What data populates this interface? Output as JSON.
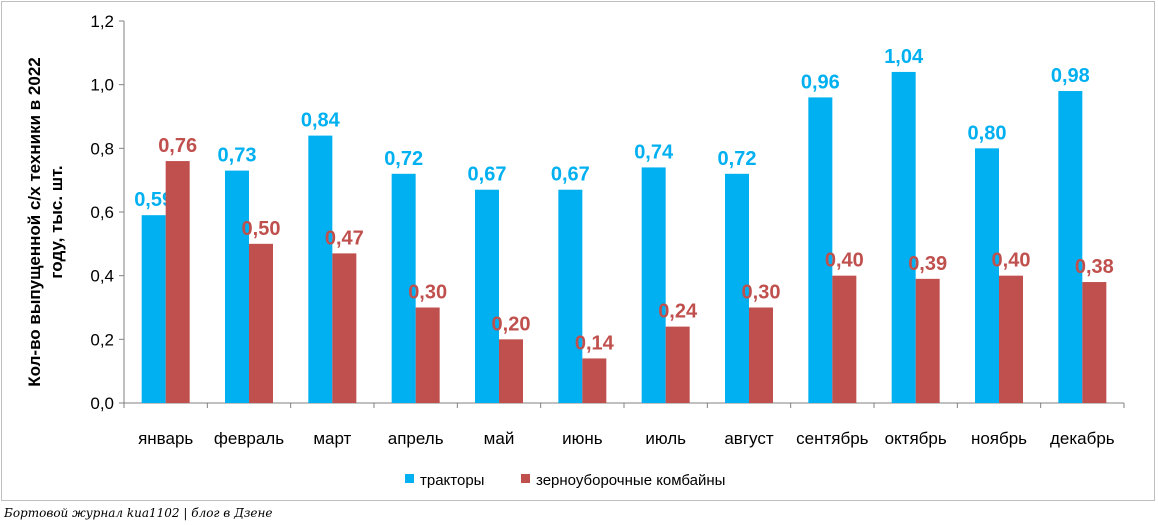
{
  "chart_data": {
    "type": "bar",
    "title": "",
    "xlabel": "",
    "ylabel": "Кол-во выпущенной с/х техники в 2022 году, тыс. шт.",
    "ylim": [
      0,
      1.2
    ],
    "yticks": [
      "0,0",
      "0,2",
      "0,4",
      "0,6",
      "0,8",
      "1,0",
      "1,2"
    ],
    "grid": false,
    "legend_position": "bottom",
    "categories": [
      "январь",
      "февраль",
      "март",
      "апрель",
      "май",
      "июнь",
      "июль",
      "август",
      "сентябрь",
      "октябрь",
      "ноябрь",
      "декабрь"
    ],
    "series": [
      {
        "name": "тракторы",
        "color": "#00b0f0",
        "label_color": "#00b0f0",
        "values": [
          0.59,
          0.73,
          0.84,
          0.72,
          0.67,
          0.67,
          0.74,
          0.72,
          0.96,
          1.04,
          0.8,
          0.98
        ],
        "labels": [
          "0,59",
          "0,73",
          "0,84",
          "0,72",
          "0,67",
          "0,67",
          "0,74",
          "0,72",
          "0,96",
          "1,04",
          "0,80",
          "0,98"
        ]
      },
      {
        "name": "зерноуборочные комбайны",
        "color": "#c0504d",
        "label_color": "#c0504d",
        "values": [
          0.76,
          0.5,
          0.47,
          0.3,
          0.2,
          0.14,
          0.24,
          0.3,
          0.4,
          0.39,
          0.4,
          0.38
        ],
        "labels": [
          "0,76",
          "0,50",
          "0,47",
          "0,30",
          "0,20",
          "0,14",
          "0,24",
          "0,30",
          "0,40",
          "0,39",
          "0,40",
          "0,38"
        ]
      }
    ]
  },
  "footer": {
    "credit": "Бортовой журнал kua1102 | блог в Дзене"
  }
}
